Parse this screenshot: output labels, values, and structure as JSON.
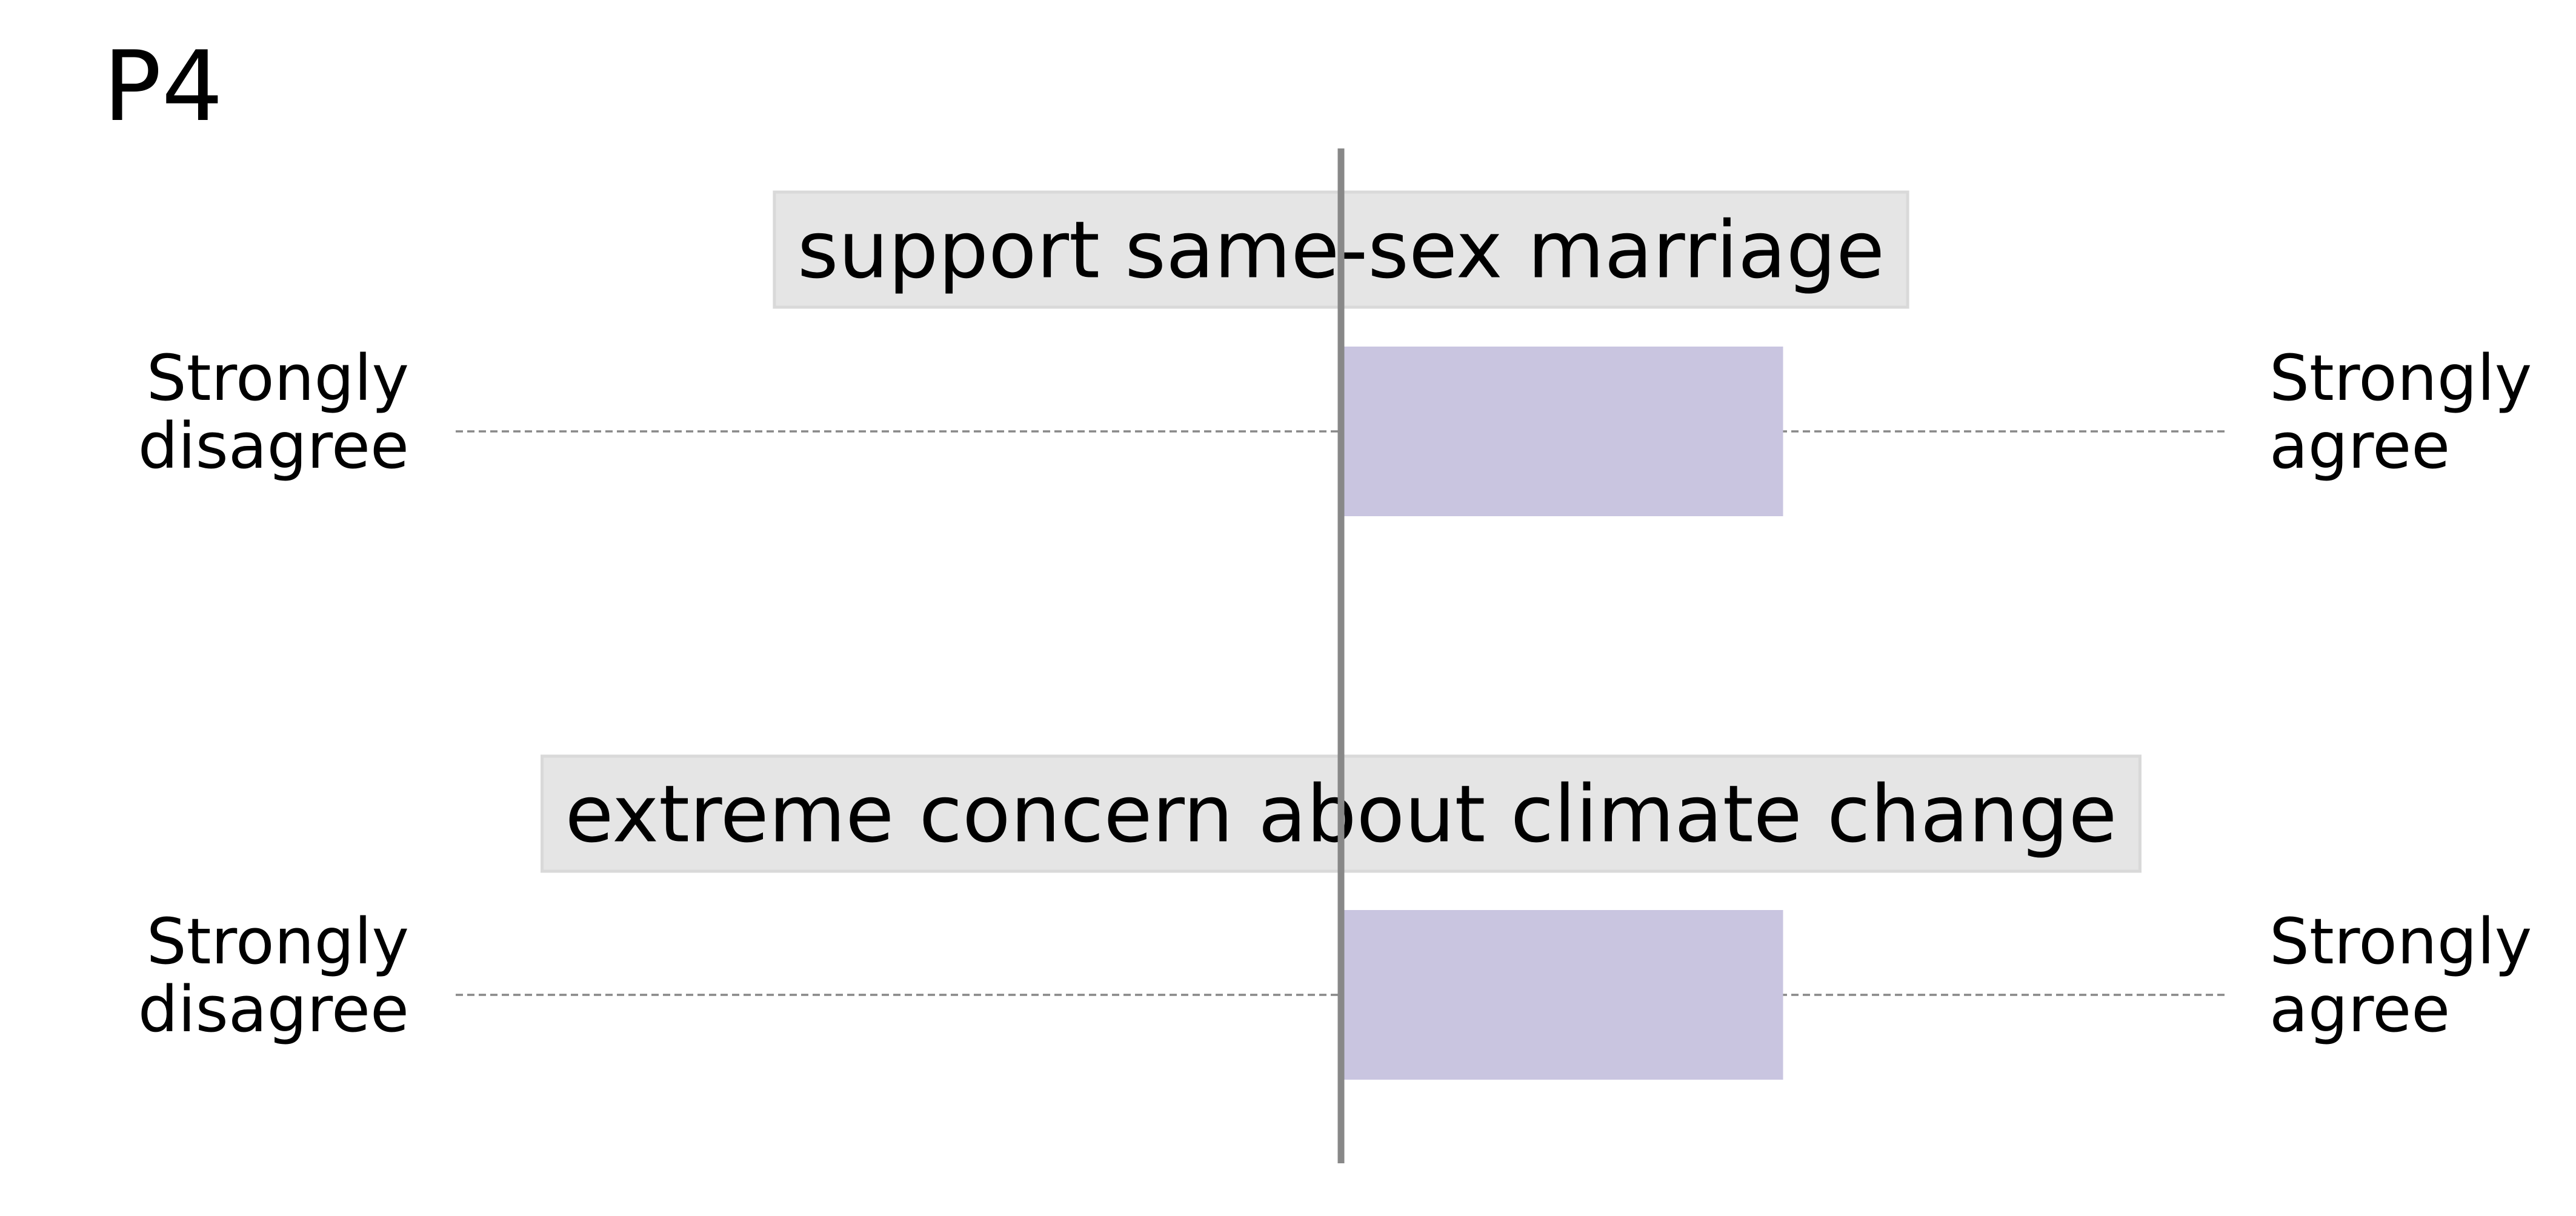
{
  "chart_data": {
    "type": "bar",
    "panel_label": "P4",
    "orientation": "horizontal",
    "scale_left_label": "Strongly disagree",
    "scale_right_label": "Strongly agree",
    "scale_left_lines": [
      "Strongly",
      "disagree"
    ],
    "scale_right_lines": [
      "Strongly",
      "agree"
    ],
    "xlim": [
      -1,
      1
    ],
    "center": 0,
    "categories": [
      "support same-sex marriage",
      "extreme concern about climate change"
    ],
    "values": [
      0.5,
      0.5
    ],
    "bar_color": "#c9c5e0",
    "label_box_color": "#e5e5e5",
    "center_line_color": "#888888",
    "guide_line_color": "#888888",
    "guide_line_style": "dashed",
    "grid": false
  }
}
